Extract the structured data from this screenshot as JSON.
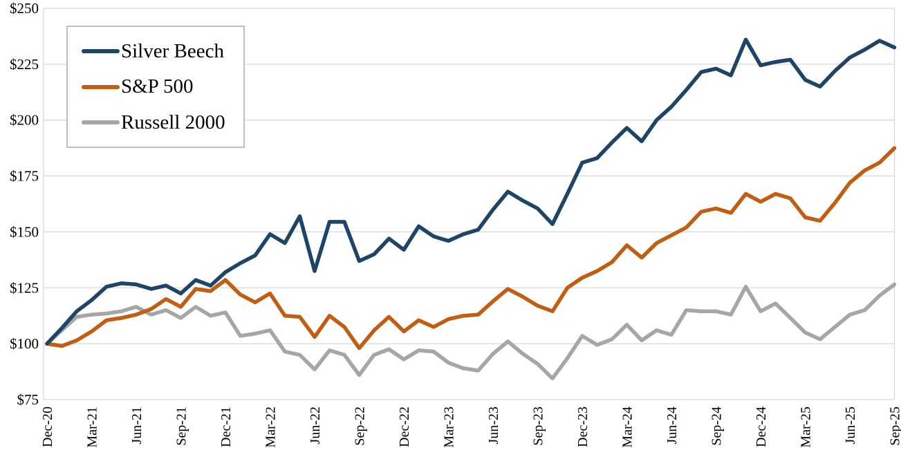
{
  "chart_data": {
    "type": "line",
    "title": "",
    "xlabel": "",
    "ylabel": "",
    "grid": "horizontal",
    "legend_position": "top-left",
    "ylim": [
      75,
      250
    ],
    "y_ticks": [
      250,
      225,
      200,
      175,
      150,
      125,
      100,
      75
    ],
    "y_tick_labels": [
      "$250",
      "$225",
      "$200",
      "$175",
      "$150",
      "$125",
      "$100",
      "$75"
    ],
    "x_tick_interval": 3,
    "x_categories": [
      "Dec-20",
      "Jan-21",
      "Feb-21",
      "Mar-21",
      "Apr-21",
      "May-21",
      "Jun-21",
      "Jul-21",
      "Aug-21",
      "Sep-21",
      "Oct-21",
      "Nov-21",
      "Dec-21",
      "Jan-22",
      "Feb-22",
      "Mar-22",
      "Apr-22",
      "May-22",
      "Jun-22",
      "Jul-22",
      "Aug-22",
      "Sep-22",
      "Oct-22",
      "Nov-22",
      "Dec-22",
      "Jan-23",
      "Feb-23",
      "Mar-23",
      "Apr-23",
      "May-23",
      "Jun-23",
      "Jul-23",
      "Aug-23",
      "Sep-23",
      "Oct-23",
      "Nov-23",
      "Dec-23",
      "Jan-24",
      "Feb-24",
      "Mar-24",
      "Apr-24",
      "May-24",
      "Jun-24",
      "Jul-24",
      "Aug-24",
      "Sep-24",
      "Oct-24",
      "Nov-24",
      "Dec-24",
      "Jan-25",
      "Feb-25",
      "Mar-25",
      "Apr-25",
      "May-25",
      "Jun-25",
      "Jul-25",
      "Aug-25",
      "Sep-25"
    ],
    "series": [
      {
        "name": "Silver Beech",
        "color": "#1E4566",
        "values": [
          100,
          107,
          114.5,
          119.5,
          125.5,
          127,
          126.5,
          124.5,
          126,
          122.5,
          128.5,
          126,
          132,
          136,
          139.5,
          149,
          145,
          157,
          132.5,
          154.5,
          154.5,
          137,
          140,
          147,
          142,
          152.5,
          148,
          146,
          149,
          151,
          160,
          168,
          164,
          160.5,
          153.5,
          167,
          181,
          183,
          190,
          196.5,
          190.5,
          200,
          206,
          213.5,
          221.5,
          223,
          220,
          236,
          224.5,
          226,
          227,
          218,
          215,
          222,
          228,
          231.5,
          235.5,
          232.5
        ]
      },
      {
        "name": "S&P 500",
        "color": "#C25E14",
        "values": [
          100,
          99,
          101.5,
          105.5,
          110.5,
          111.5,
          113,
          115.5,
          120,
          116.5,
          124.5,
          123.5,
          128.5,
          122,
          118.5,
          122.5,
          112.5,
          112,
          103,
          112.5,
          107.5,
          98,
          106,
          112,
          105.5,
          110.5,
          107.5,
          111,
          112.5,
          113,
          119,
          124.5,
          121,
          117,
          114.5,
          125,
          129.5,
          132.5,
          136.5,
          144,
          138.5,
          145,
          148.5,
          152,
          159,
          160.5,
          158.5,
          167,
          163.5,
          167,
          165,
          156.5,
          155,
          163,
          172,
          177.5,
          181,
          187.5
        ]
      },
      {
        "name": "Russell 2000",
        "color": "#A6A6A6",
        "values": [
          100,
          106,
          112,
          113,
          113.5,
          114.5,
          116.5,
          113,
          115,
          111.5,
          116.5,
          112.5,
          114,
          103.5,
          104.5,
          106,
          96.5,
          95,
          88.5,
          97,
          95,
          86,
          95,
          97.5,
          93,
          97,
          96.5,
          91.5,
          89,
          88,
          95.5,
          101,
          95.5,
          91,
          84.5,
          93.5,
          103.5,
          99.5,
          102,
          108.5,
          101.5,
          106,
          104,
          115,
          114.5,
          114.5,
          113,
          125.5,
          114.5,
          118,
          111.5,
          105,
          102,
          107.5,
          113,
          115,
          121.5,
          126.5
        ]
      }
    ]
  },
  "colors": {
    "background": "#FFFFFF",
    "gridline": "#D9D9D9",
    "axis_text": "#000000",
    "legend_border": "#BFBFBF"
  }
}
